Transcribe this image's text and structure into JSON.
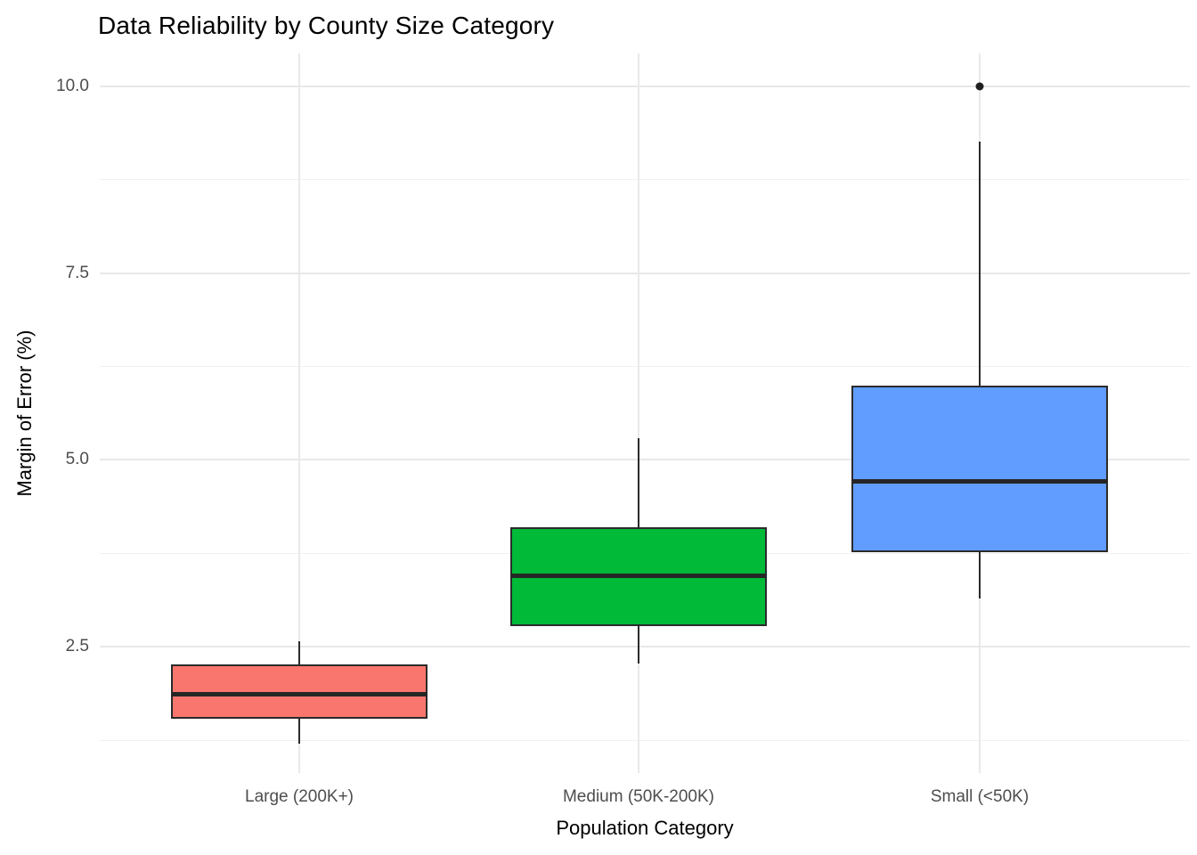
{
  "chart_data": {
    "type": "boxplot",
    "title": "Data Reliability by County Size Category",
    "xlabel": "Population Category",
    "ylabel": "Margin of Error (%)",
    "categories": [
      "Large (200K+)",
      "Medium (50K-200K)",
      "Small (<50K)"
    ],
    "y_ticks": [
      {
        "value": 2.5,
        "label": "2.5"
      },
      {
        "value": 5.0,
        "label": "5.0"
      },
      {
        "value": 7.5,
        "label": "7.5"
      },
      {
        "value": 10.0,
        "label": "10.0"
      }
    ],
    "y_minor_ticks": [
      1.25,
      3.75,
      6.25,
      8.75
    ],
    "ylim": [
      0.81,
      10.44
    ],
    "grid": "major-and-minor, no axis lines, white background",
    "legend": "none",
    "series": [
      {
        "name": "Large (200K+)",
        "color": "#F8766D",
        "whisker_low": 1.2,
        "q1": 1.54,
        "median": 1.86,
        "q3": 2.26,
        "whisker_high": 2.57,
        "outliers": []
      },
      {
        "name": "Medium (50K-200K)",
        "color": "#00BA38",
        "whisker_low": 2.28,
        "q1": 2.78,
        "median": 3.45,
        "q3": 4.1,
        "whisker_high": 5.29,
        "outliers": []
      },
      {
        "name": "Small (<50K)",
        "color": "#619CFF",
        "whisker_low": 3.15,
        "q1": 3.76,
        "median": 4.71,
        "q3": 6.0,
        "whisker_high": 9.26,
        "outliers": [
          10.0
        ]
      }
    ],
    "style_colors": {
      "box_border": "#2b2b2b",
      "median": "#262626",
      "outlier": "#1f1f1f",
      "grid_major": "#e8e8e8",
      "grid_minor": "#f0f0f0",
      "tick_text": "#4d4d4d",
      "title_text": "#000000"
    }
  }
}
